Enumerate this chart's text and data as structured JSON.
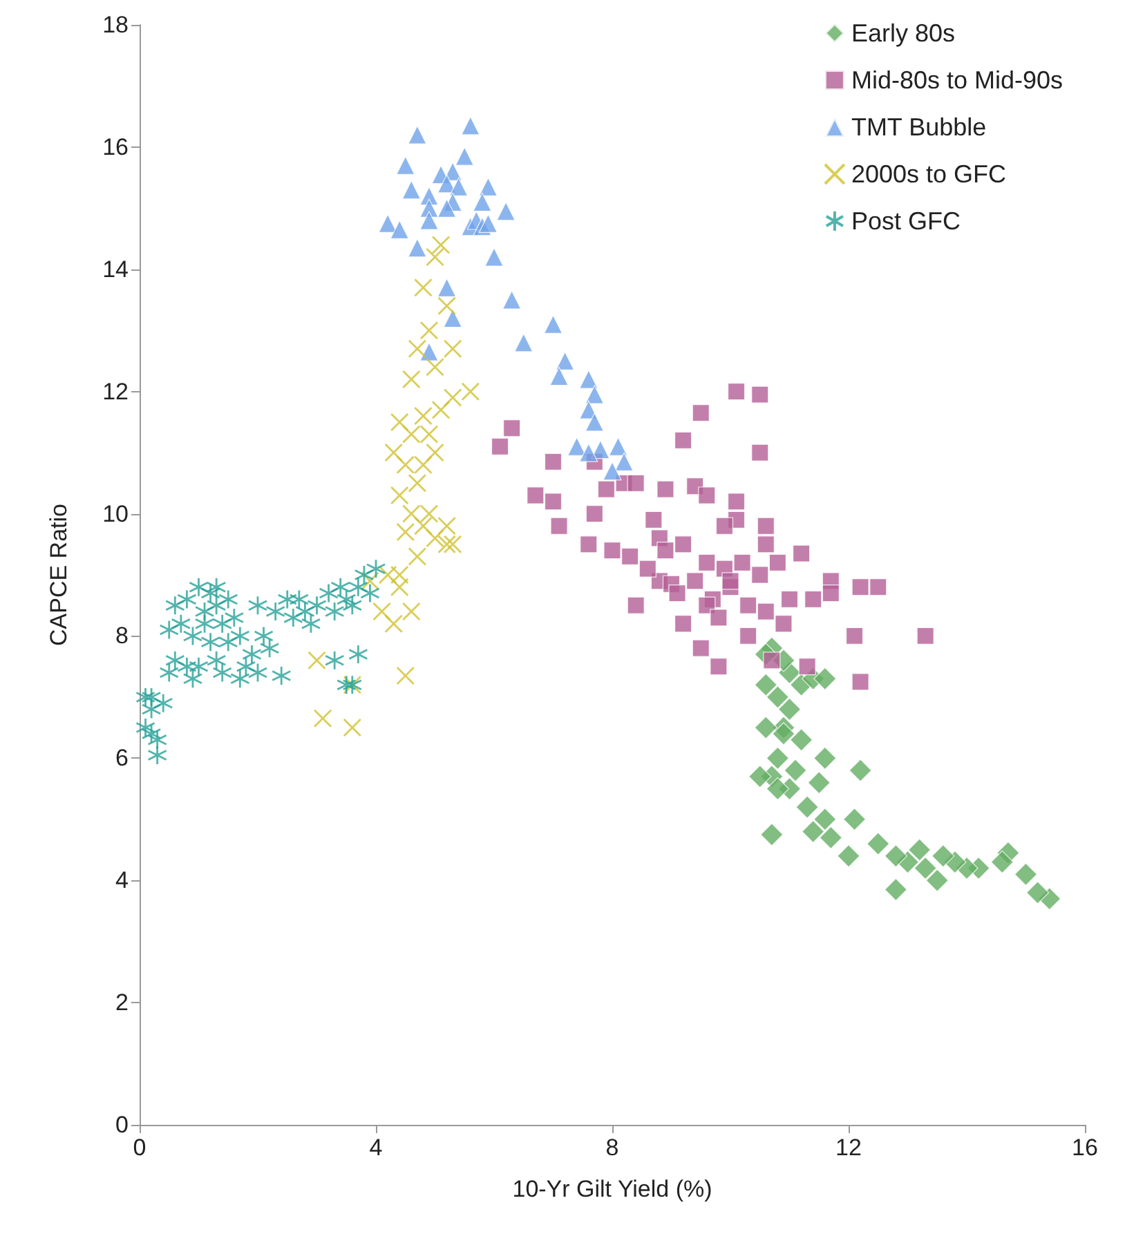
{
  "chart_data": {
    "type": "scatter",
    "xlabel": "10-Yr Gilt Yield (%)",
    "ylabel": "CAPCE Ratio",
    "xlim": [
      0,
      16
    ],
    "xticks": [
      0,
      4,
      8,
      12,
      16
    ],
    "ylim": [
      0,
      18
    ],
    "yticks": [
      0,
      2,
      4,
      6,
      8,
      10,
      12,
      14,
      16,
      18
    ],
    "grid": false,
    "legend": "top right",
    "series": [
      {
        "name": "Early 80s",
        "color": "#63ad63",
        "marker": "diamond",
        "x": [
          15.4,
          15.2,
          15.0,
          14.7,
          14.6,
          14.2,
          14.0,
          13.8,
          13.6,
          13.5,
          13.3,
          13.2,
          13.0,
          12.8,
          12.8,
          12.5,
          12.2,
          12.1,
          12.0,
          11.7,
          11.6,
          11.5,
          11.6,
          11.4,
          11.3,
          11.2,
          11.1,
          11.0,
          11.0,
          11.0,
          11.2,
          10.9,
          10.8,
          10.7,
          10.8,
          10.6,
          10.7,
          10.6,
          10.5,
          10.7,
          11.4,
          11.6,
          10.9,
          10.6,
          10.8,
          10.9
        ],
        "values": [
          3.7,
          3.8,
          4.1,
          4.45,
          4.3,
          4.2,
          4.2,
          4.3,
          4.4,
          4.0,
          4.2,
          4.5,
          4.3,
          4.4,
          3.85,
          4.6,
          5.8,
          5.0,
          4.4,
          4.7,
          5.0,
          5.6,
          6.0,
          4.8,
          5.2,
          6.3,
          5.8,
          5.5,
          6.8,
          7.4,
          7.2,
          6.5,
          6.0,
          5.7,
          7.0,
          7.2,
          7.8,
          6.5,
          5.7,
          4.75,
          7.3,
          7.3,
          7.6,
          7.7,
          5.5,
          6.4
        ]
      },
      {
        "name": "Mid-80s to Mid-90s",
        "color": "#b45f96",
        "marker": "square",
        "x": [
          10.1,
          10.5,
          9.5,
          10.5,
          9.2,
          6.3,
          6.1,
          7.7,
          7.0,
          6.7,
          7.0,
          7.1,
          7.9,
          8.2,
          8.4,
          8.9,
          9.4,
          9.6,
          10.1,
          10.1,
          9.9,
          10.6,
          10.6,
          7.7,
          7.6,
          8.0,
          8.3,
          8.7,
          8.8,
          8.9,
          9.2,
          9.6,
          9.9,
          10.2,
          10.5,
          10.8,
          11.2,
          11.0,
          11.4,
          11.7,
          11.7,
          12.2,
          12.5,
          8.8,
          9.0,
          9.4,
          9.7,
          10.0,
          10.3,
          10.6,
          10.3,
          10.9,
          8.4,
          9.5,
          9.8,
          9.2,
          10.7,
          11.3,
          12.1,
          12.2,
          13.3,
          9.6,
          9.8,
          10.0,
          9.1,
          8.6
        ],
        "values": [
          12.0,
          11.95,
          11.65,
          11.0,
          11.2,
          11.4,
          11.1,
          10.85,
          10.85,
          10.3,
          10.2,
          9.8,
          10.4,
          10.5,
          10.5,
          10.4,
          10.45,
          10.3,
          10.2,
          9.9,
          9.8,
          9.8,
          9.5,
          10.0,
          9.5,
          9.4,
          9.3,
          9.9,
          9.6,
          9.4,
          9.5,
          9.2,
          9.1,
          9.2,
          9.0,
          9.2,
          9.35,
          8.6,
          8.6,
          8.9,
          8.7,
          8.8,
          8.8,
          8.9,
          8.85,
          8.9,
          8.6,
          8.8,
          8.5,
          8.4,
          8.0,
          8.2,
          8.5,
          7.8,
          7.5,
          8.2,
          7.6,
          7.5,
          8.0,
          7.25,
          8.0,
          8.5,
          8.3,
          8.9,
          8.7,
          9.1
        ]
      },
      {
        "name": "TMT Bubble",
        "color": "#6fa3ea",
        "marker": "triangle",
        "x": [
          5.6,
          4.7,
          5.5,
          4.5,
          5.3,
          5.1,
          5.9,
          5.2,
          5.4,
          4.6,
          4.9,
          4.9,
          5.3,
          5.2,
          5.8,
          6.2,
          4.9,
          5.6,
          5.7,
          5.8,
          5.9,
          4.2,
          4.4,
          4.7,
          5.2,
          6.0,
          6.3,
          5.3,
          4.9,
          6.5,
          7.0,
          7.2,
          7.1,
          7.6,
          7.7,
          7.6,
          7.7,
          7.4,
          7.8,
          8.1,
          8.2,
          8.0,
          7.6
        ],
        "values": [
          16.35,
          16.2,
          15.85,
          15.7,
          15.6,
          15.55,
          15.35,
          15.4,
          15.35,
          15.3,
          15.2,
          15.0,
          15.1,
          15.0,
          15.1,
          14.95,
          14.8,
          14.7,
          14.8,
          14.7,
          14.75,
          14.75,
          14.65,
          14.35,
          13.7,
          14.2,
          13.5,
          13.2,
          12.65,
          12.8,
          13.1,
          12.5,
          12.25,
          12.2,
          11.95,
          11.7,
          11.5,
          11.1,
          11.05,
          11.1,
          10.85,
          10.7,
          11.0
        ]
      },
      {
        "name": "2000s to GFC",
        "color": "#cfc230",
        "marker": "cross",
        "x": [
          5.1,
          5.0,
          4.8,
          5.2,
          4.9,
          5.3,
          4.6,
          5.0,
          4.7,
          5.6,
          5.3,
          4.8,
          4.4,
          4.6,
          5.1,
          4.3,
          4.5,
          4.9,
          5.0,
          4.7,
          4.4,
          4.6,
          4.9,
          4.5,
          4.7,
          5.0,
          5.2,
          5.3,
          4.8,
          4.4,
          4.6,
          4.3,
          4.4,
          4.2,
          3.9,
          4.1,
          3.0,
          3.6,
          3.1,
          3.6,
          4.5,
          5.2,
          4.8
        ],
        "values": [
          14.4,
          14.2,
          13.7,
          13.4,
          13.0,
          12.7,
          12.2,
          12.4,
          12.7,
          12.0,
          11.9,
          11.6,
          11.5,
          11.3,
          11.7,
          11.0,
          10.8,
          11.3,
          11.0,
          10.5,
          10.3,
          10.0,
          10.0,
          9.7,
          9.3,
          9.6,
          9.5,
          9.5,
          9.8,
          9.0,
          8.4,
          8.2,
          8.8,
          9.0,
          8.9,
          8.4,
          7.6,
          7.2,
          6.65,
          6.5,
          7.35,
          9.8,
          10.8
        ]
      },
      {
        "name": "Post GFC",
        "color": "#26a199",
        "marker": "cross",
        "x": [
          0.1,
          0.2,
          0.1,
          0.3,
          0.3,
          0.2,
          0.4,
          0.5,
          0.5,
          0.6,
          0.7,
          0.8,
          0.9,
          1.0,
          0.9,
          1.0,
          1.1,
          1.2,
          1.3,
          1.3,
          1.4,
          1.2,
          1.3,
          1.4,
          1.5,
          1.6,
          1.7,
          1.8,
          1.9,
          2.0,
          2.1,
          2.2,
          2.3,
          2.4,
          2.5,
          2.6,
          2.7,
          2.8,
          2.9,
          3.0,
          3.2,
          3.3,
          3.4,
          3.5,
          3.6,
          3.7,
          3.8,
          3.9,
          4.0,
          3.3,
          3.6,
          3.7,
          3.5,
          1.7,
          1.1,
          0.6,
          0.8,
          1.5,
          2.0,
          0.2
        ],
        "values": [
          7.0,
          6.8,
          6.5,
          6.3,
          6.05,
          6.4,
          6.9,
          7.4,
          8.1,
          8.5,
          8.2,
          7.5,
          7.3,
          7.5,
          8.0,
          8.8,
          8.4,
          8.7,
          8.8,
          8.5,
          8.2,
          7.9,
          7.6,
          7.4,
          7.9,
          8.3,
          8.0,
          7.5,
          7.7,
          8.5,
          8.0,
          7.8,
          8.4,
          7.35,
          8.6,
          8.3,
          8.6,
          8.4,
          8.2,
          8.5,
          8.7,
          8.4,
          8.8,
          8.6,
          8.5,
          8.8,
          9.0,
          8.7,
          9.1,
          7.6,
          7.2,
          7.7,
          7.2,
          7.3,
          8.2,
          7.6,
          8.6,
          8.6,
          7.4,
          7.0
        ]
      }
    ]
  }
}
